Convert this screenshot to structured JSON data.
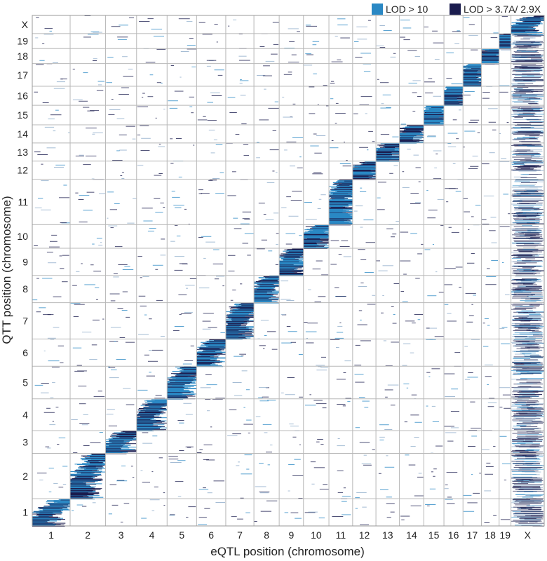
{
  "chart_data": {
    "type": "heatmap",
    "title": "",
    "xlabel": "eQTL position (chromosome)",
    "ylabel": "QTT position (chromosome)",
    "chromosomes": [
      "1",
      "2",
      "3",
      "4",
      "5",
      "6",
      "7",
      "8",
      "9",
      "10",
      "11",
      "12",
      "13",
      "14",
      "15",
      "16",
      "17",
      "18",
      "19",
      "X"
    ],
    "x_chromosome_lengths": [
      195,
      182,
      160,
      157,
      152,
      150,
      145,
      130,
      125,
      131,
      122,
      120,
      121,
      125,
      104,
      98,
      95,
      91,
      61,
      171
    ],
    "y_chromosome_lengths": [
      60,
      100,
      50,
      70,
      72,
      60,
      80,
      60,
      60,
      52,
      100,
      40,
      40,
      40,
      43,
      42,
      50,
      33,
      33,
      40
    ],
    "diagonal_band": "cis-eQTL: each chromosome's genes map to eQTLs on the same chromosome",
    "highlighted_column": "X",
    "legend": [
      {
        "label": "LOD > 10",
        "color": "#2a88c4"
      },
      {
        "label": "LOD > 3.7A/ 2.9X",
        "color": "#1a1c4e"
      }
    ],
    "grid": true,
    "legend_position": "top-right"
  }
}
